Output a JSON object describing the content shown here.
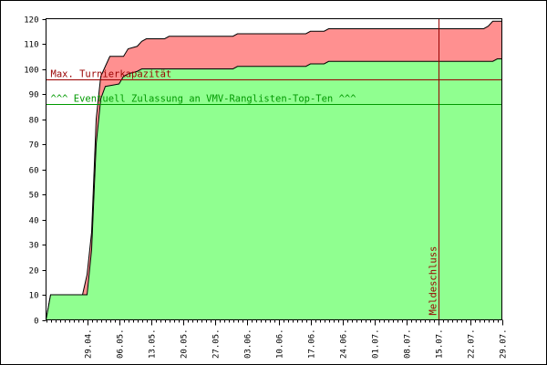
{
  "chart_data": {
    "type": "area",
    "x_ticks": [
      "29.04.",
      "06.05.",
      "13.05.",
      "20.05.",
      "27.05.",
      "03.06.",
      "10.06.",
      "17.06.",
      "24.06.",
      "01.07.",
      "08.07.",
      "15.07.",
      "22.07.",
      "29.07."
    ],
    "x_range": [
      "2024-04-20",
      "2024-07-29"
    ],
    "ylim": [
      0,
      120
    ],
    "y_ticks": [
      0,
      10,
      20,
      30,
      40,
      50,
      60,
      70,
      80,
      90,
      100,
      110,
      120
    ],
    "series": [
      {
        "color": "#ff9090",
        "points": [
          [
            "2024-04-20",
            0
          ],
          [
            "2024-04-21",
            10
          ],
          [
            "2024-04-28",
            10
          ],
          [
            "2024-04-29",
            18
          ],
          [
            "2024-04-30",
            35
          ],
          [
            "2024-05-01",
            80
          ],
          [
            "2024-05-02",
            97
          ],
          [
            "2024-05-03",
            101
          ],
          [
            "2024-05-04",
            105
          ],
          [
            "2024-05-07",
            105
          ],
          [
            "2024-05-08",
            108
          ],
          [
            "2024-05-10",
            109
          ],
          [
            "2024-05-11",
            111
          ],
          [
            "2024-05-12",
            112
          ],
          [
            "2024-05-16",
            112
          ],
          [
            "2024-05-17",
            113
          ],
          [
            "2024-05-31",
            113
          ],
          [
            "2024-06-01",
            114
          ],
          [
            "2024-06-16",
            114
          ],
          [
            "2024-06-17",
            115
          ],
          [
            "2024-06-20",
            115
          ],
          [
            "2024-06-21",
            116
          ],
          [
            "2024-07-25",
            116
          ],
          [
            "2024-07-26",
            117
          ],
          [
            "2024-07-27",
            119
          ],
          [
            "2024-07-29",
            119
          ]
        ]
      },
      {
        "color": "#90ff90",
        "points": [
          [
            "2024-04-20",
            0
          ],
          [
            "2024-04-21",
            10
          ],
          [
            "2024-04-29",
            10
          ],
          [
            "2024-04-30",
            28
          ],
          [
            "2024-05-01",
            70
          ],
          [
            "2024-05-02",
            88
          ],
          [
            "2024-05-03",
            93
          ],
          [
            "2024-05-06",
            94
          ],
          [
            "2024-05-07",
            97
          ],
          [
            "2024-05-08",
            98
          ],
          [
            "2024-05-10",
            99
          ],
          [
            "2024-05-11",
            100
          ],
          [
            "2024-05-31",
            100
          ],
          [
            "2024-06-01",
            101
          ],
          [
            "2024-06-16",
            101
          ],
          [
            "2024-06-17",
            102
          ],
          [
            "2024-06-20",
            102
          ],
          [
            "2024-06-21",
            103
          ],
          [
            "2024-07-27",
            103
          ],
          [
            "2024-07-28",
            104
          ],
          [
            "2024-07-29",
            104
          ]
        ]
      }
    ],
    "reference_lines": [
      {
        "value": 96,
        "label": "Max. Turnierkapazität",
        "color": "#990000"
      },
      {
        "value": 86,
        "label": "^^^ Eventuell Zulassung an VMV-Ranglisten-Top-Ten ^^^",
        "color": "#009900"
      }
    ],
    "markers": [
      {
        "date": "2024-07-15",
        "label": "Meldeschluss",
        "color": "#990000"
      }
    ],
    "grid": false
  }
}
